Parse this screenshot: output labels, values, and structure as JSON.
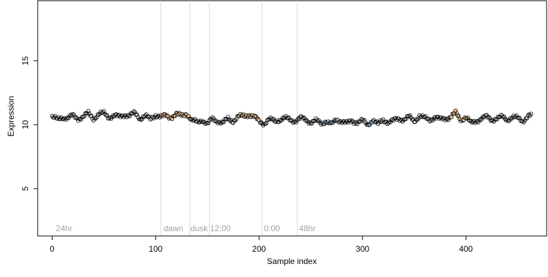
{
  "chart_data": {
    "type": "scatter",
    "title": "",
    "xlabel": "Sample index",
    "ylabel": "Expression",
    "xlim": [
      -14,
      478
    ],
    "ylim": [
      1.3,
      19.7
    ],
    "xticks": [
      0,
      100,
      200,
      300,
      400
    ],
    "yticks": [
      5,
      10,
      15
    ],
    "grid": false,
    "vlines": [
      105,
      133,
      152,
      203,
      237
    ],
    "annotations": [
      {
        "x": 3,
        "text": "24hr"
      },
      {
        "x": 107,
        "text": "dawn"
      },
      {
        "x": 133,
        "text": "dusk"
      },
      {
        "x": 152,
        "text": "12:00"
      },
      {
        "x": 204,
        "text": "0:00"
      },
      {
        "x": 238,
        "text": "48hr"
      }
    ],
    "colors": {
      "point_stroke": "#000000",
      "highlight_fill": "#f5c99a",
      "blue_fill": "#a9c3e8",
      "vline": "#d9d9d9",
      "annotation": "#a0a0a0"
    },
    "highlight_ranges": [
      [
        105,
        133
      ],
      [
        180,
        200
      ],
      [
        385,
        400
      ]
    ],
    "blue_ranges": [
      [
        262,
        278
      ],
      [
        298,
        312
      ]
    ],
    "anchors": [
      [
        0,
        10.6
      ],
      [
        5,
        10.4
      ],
      [
        10,
        10.6
      ],
      [
        15,
        10.5
      ],
      [
        20,
        10.7
      ],
      [
        25,
        10.5
      ],
      [
        30,
        10.6
      ],
      [
        35,
        10.9
      ],
      [
        40,
        10.5
      ],
      [
        45,
        10.8
      ],
      [
        50,
        10.9
      ],
      [
        55,
        10.6
      ],
      [
        60,
        10.7
      ],
      [
        65,
        10.6
      ],
      [
        70,
        10.8
      ],
      [
        75,
        10.7
      ],
      [
        80,
        10.9
      ],
      [
        85,
        10.5
      ],
      [
        90,
        10.7
      ],
      [
        95,
        10.4
      ],
      [
        100,
        10.8
      ],
      [
        105,
        10.6
      ],
      [
        110,
        10.7
      ],
      [
        115,
        10.6
      ],
      [
        120,
        10.8
      ],
      [
        125,
        10.7
      ],
      [
        130,
        10.9
      ],
      [
        135,
        10.3
      ],
      [
        140,
        10.2
      ],
      [
        145,
        10.4
      ],
      [
        150,
        10.0
      ],
      [
        155,
        10.5
      ],
      [
        160,
        10.3
      ],
      [
        165,
        10.1
      ],
      [
        170,
        10.5
      ],
      [
        175,
        10.3
      ],
      [
        180,
        10.6
      ],
      [
        185,
        10.7
      ],
      [
        190,
        10.8
      ],
      [
        195,
        10.6
      ],
      [
        200,
        10.3
      ],
      [
        205,
        10.1
      ],
      [
        210,
        10.4
      ],
      [
        215,
        10.3
      ],
      [
        220,
        10.4
      ],
      [
        225,
        10.5
      ],
      [
        230,
        10.4
      ],
      [
        235,
        10.3
      ],
      [
        240,
        10.5
      ],
      [
        245,
        10.4
      ],
      [
        250,
        10.2
      ],
      [
        255,
        10.3
      ],
      [
        260,
        10.1
      ],
      [
        265,
        10.3
      ],
      [
        270,
        10.0
      ],
      [
        275,
        10.4
      ],
      [
        280,
        10.3
      ],
      [
        285,
        10.1
      ],
      [
        290,
        10.3
      ],
      [
        295,
        10.2
      ],
      [
        300,
        10.3
      ],
      [
        305,
        10.0
      ],
      [
        310,
        10.4
      ],
      [
        315,
        10.0
      ],
      [
        320,
        10.4
      ],
      [
        325,
        10.2
      ],
      [
        330,
        10.3
      ],
      [
        335,
        10.5
      ],
      [
        340,
        10.4
      ],
      [
        345,
        10.6
      ],
      [
        350,
        10.3
      ],
      [
        355,
        10.7
      ],
      [
        360,
        10.5
      ],
      [
        365,
        10.4
      ],
      [
        370,
        10.6
      ],
      [
        375,
        10.4
      ],
      [
        380,
        10.5
      ],
      [
        385,
        10.6
      ],
      [
        390,
        10.9
      ],
      [
        395,
        10.4
      ],
      [
        400,
        10.6
      ],
      [
        405,
        10.1
      ],
      [
        410,
        10.3
      ],
      [
        415,
        10.5
      ],
      [
        420,
        10.6
      ],
      [
        425,
        10.4
      ],
      [
        430,
        10.5
      ],
      [
        435,
        10.6
      ],
      [
        440,
        10.4
      ],
      [
        445,
        10.6
      ],
      [
        450,
        10.5
      ],
      [
        455,
        10.3
      ],
      [
        460,
        10.7
      ],
      [
        463,
        10.7
      ]
    ],
    "n_points": 464
  }
}
